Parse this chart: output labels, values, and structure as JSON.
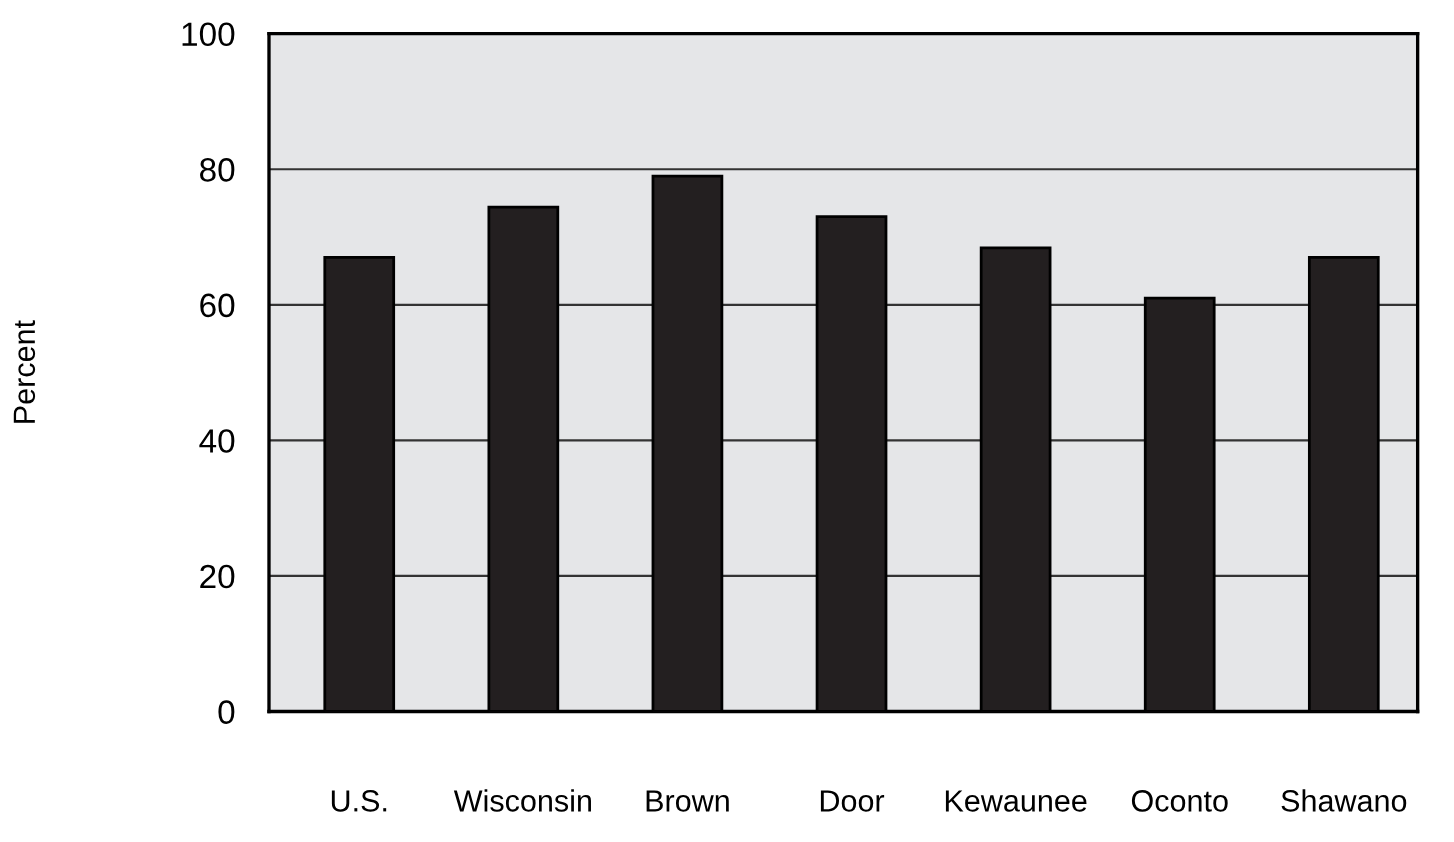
{
  "chart_data": {
    "type": "bar",
    "ylabel": "Percent",
    "categories": [
      "U.S.",
      "Wisconsin",
      "Brown",
      "Door",
      "Kewaunee",
      "Oconto",
      "Shawano"
    ],
    "values": [
      67,
      74.4,
      79,
      73,
      68.4,
      61,
      67
    ],
    "color": "#231f20",
    "ylim": [
      0,
      100
    ],
    "yticks": [
      0,
      20,
      40,
      60,
      80,
      100
    ],
    "grid": "y"
  }
}
